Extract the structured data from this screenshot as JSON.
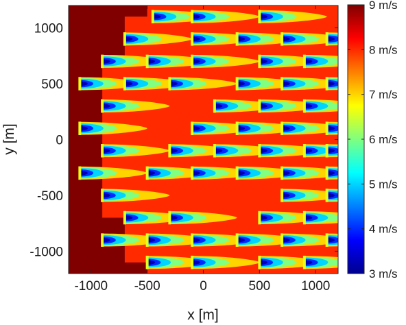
{
  "chart_data": {
    "type": "heatmap",
    "xlabel": "x [m]",
    "ylabel": "y [m]",
    "xlim": [
      -1200,
      1200
    ],
    "ylim": [
      -1200,
      1200
    ],
    "x_ticks": [
      -1000,
      -500,
      0,
      500,
      1000
    ],
    "y_ticks": [
      -1000,
      -500,
      0,
      500,
      1000
    ],
    "x_tick_labels": [
      "-1000",
      "-500",
      "0",
      "500",
      "1000"
    ],
    "y_tick_labels": [
      "-1000",
      "-500",
      "0",
      "500",
      "1000"
    ],
    "colorbar": {
      "min": 3,
      "max": 9,
      "ticks": [
        3,
        4,
        5,
        6,
        7,
        8,
        9
      ],
      "tick_labels": [
        "3 m/s",
        "4 m/s",
        "5 m/s",
        "6 m/s",
        "7 m/s",
        "8 m/s",
        "9 m/s"
      ],
      "colormap": "jet"
    },
    "background": {
      "free_stream_speed": 9,
      "waked_region_speed": 8,
      "waked_region_boundary": [
        [
          -500,
          1200
        ],
        [
          -500,
          1100
        ],
        [
          -700,
          1100
        ],
        [
          -700,
          700
        ],
        [
          -900,
          700
        ],
        [
          -900,
          -700
        ],
        [
          -700,
          -700
        ],
        [
          -700,
          -1100
        ],
        [
          -500,
          -1100
        ],
        [
          -500,
          -1200
        ]
      ]
    },
    "turbines": [
      [
        -450,
        1100
      ],
      [
        -100,
        1100
      ],
      [
        500,
        1100
      ],
      [
        -700,
        900
      ],
      [
        -100,
        900
      ],
      [
        300,
        900
      ],
      [
        700,
        900
      ],
      [
        1100,
        900
      ],
      [
        -900,
        700
      ],
      [
        -500,
        700
      ],
      [
        -100,
        700
      ],
      [
        500,
        700
      ],
      [
        900,
        700
      ],
      [
        -1100,
        500
      ],
      [
        -700,
        500
      ],
      [
        -300,
        500
      ],
      [
        300,
        500
      ],
      [
        700,
        500
      ],
      [
        1100,
        500
      ],
      [
        -900,
        300
      ],
      [
        100,
        300
      ],
      [
        500,
        300
      ],
      [
        900,
        300
      ],
      [
        -1100,
        100
      ],
      [
        -100,
        100
      ],
      [
        300,
        100
      ],
      [
        700,
        100
      ],
      [
        1100,
        100
      ],
      [
        -900,
        -100
      ],
      [
        -300,
        -100
      ],
      [
        100,
        -100
      ],
      [
        500,
        -100
      ],
      [
        900,
        -100
      ],
      [
        1100,
        -100
      ],
      [
        -1100,
        -300
      ],
      [
        -500,
        -300
      ],
      [
        -100,
        -300
      ],
      [
        300,
        -300
      ],
      [
        700,
        -300
      ],
      [
        1100,
        -300
      ],
      [
        -900,
        -500
      ],
      [
        700,
        -500
      ],
      [
        1100,
        -500
      ],
      [
        -700,
        -700
      ],
      [
        -300,
        -700
      ],
      [
        500,
        -700
      ],
      [
        900,
        -700
      ],
      [
        -900,
        -900
      ],
      [
        -500,
        -900
      ],
      [
        -100,
        -900
      ],
      [
        300,
        -900
      ],
      [
        700,
        -900
      ],
      [
        1100,
        -900
      ],
      [
        -500,
        -1100
      ],
      [
        -100,
        -1100
      ],
      [
        500,
        -1100
      ],
      [
        900,
        -1100
      ]
    ],
    "wake_profile": {
      "core_speed": 3,
      "recovery_speed": 7
    }
  }
}
